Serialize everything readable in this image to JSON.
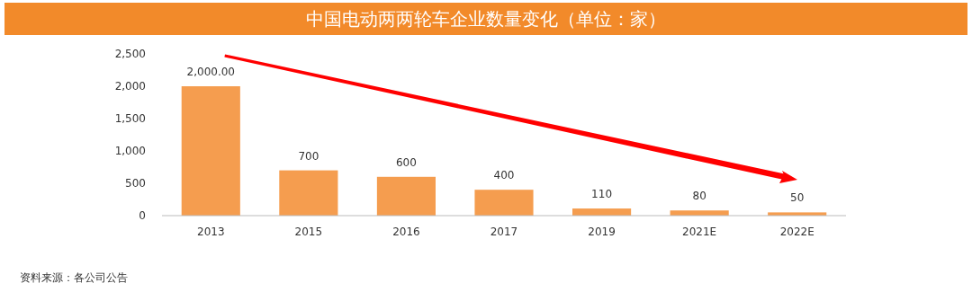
{
  "chart_data": {
    "type": "bar",
    "title": "中国电动两两轮车企业数量变化（单位：家）",
    "categories": [
      "2013",
      "2015",
      "2016",
      "2017",
      "2019",
      "2021E",
      "2022E"
    ],
    "values": [
      2000,
      700,
      600,
      400,
      110,
      80,
      50
    ],
    "value_labels": [
      "2,000.00",
      "700",
      "600",
      "400",
      "110",
      "80",
      "50"
    ],
    "color": "#f59d4f",
    "ylim": [
      0,
      2500
    ],
    "yticks": [
      {
        "value": 0,
        "label": "0"
      },
      {
        "value": 500,
        "label": "500"
      },
      {
        "value": 1000,
        "label": "1,000"
      },
      {
        "value": 1500,
        "label": "1,500"
      },
      {
        "value": 2000,
        "label": "2,000"
      },
      {
        "value": 2500,
        "label": "2,500"
      }
    ],
    "grid": false,
    "annotations": [
      "资料来源：各公司公告"
    ]
  }
}
